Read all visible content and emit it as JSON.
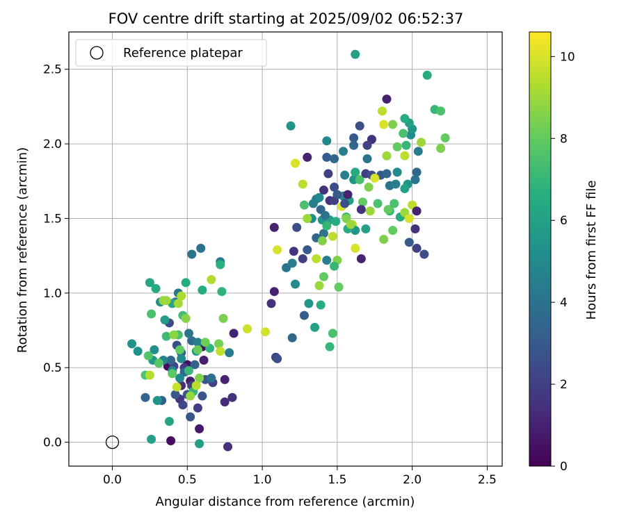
{
  "chart_data": {
    "type": "scatter",
    "title": "FOV centre drift starting at 2025/09/02 06:52:37",
    "xlabel": "Angular distance from reference (arcmin)",
    "ylabel": "Rotation from reference (arcmin)",
    "xlim": [
      -0.29,
      2.6
    ],
    "ylim": [
      -0.16,
      2.75
    ],
    "xticks": [
      0.0,
      0.5,
      1.0,
      1.5,
      2.0,
      2.5
    ],
    "xtick_labels": [
      "0.0",
      "0.5",
      "1.0",
      "1.5",
      "2.0",
      "2.5"
    ],
    "yticks": [
      0.0,
      0.5,
      1.0,
      1.5,
      2.0,
      2.5
    ],
    "ytick_labels": [
      "0.0",
      "0.5",
      "1.0",
      "1.5",
      "2.0",
      "2.5"
    ],
    "grid": true,
    "legend": {
      "placement": "top-left",
      "entries": [
        "Reference platepar"
      ]
    },
    "reference_point": {
      "x": 0.0,
      "y": 0.0
    },
    "colorbar": {
      "label": "Hours from first FF file",
      "colormap": "viridis",
      "range": [
        0,
        10.6
      ],
      "ticks": [
        0,
        2,
        4,
        6,
        8,
        10
      ],
      "tick_labels": [
        "0",
        "2",
        "4",
        "6",
        "8",
        "10"
      ]
    },
    "points": [
      [
        0.37,
        0.51,
        0.3
      ],
      [
        0.39,
        0.01,
        0.4
      ],
      [
        0.5,
        0.52,
        0.5
      ],
      [
        0.6,
        0.64,
        0.6
      ],
      [
        0.58,
        0.09,
        0.7
      ],
      [
        0.52,
        0.41,
        0.8
      ],
      [
        0.61,
        0.55,
        0.9
      ],
      [
        0.75,
        0.42,
        1.0
      ],
      [
        0.81,
        0.73,
        1.1
      ],
      [
        0.75,
        0.27,
        1.2
      ],
      [
        0.46,
        0.38,
        1.3
      ],
      [
        0.77,
        -0.03,
        1.4
      ],
      [
        0.8,
        0.3,
        1.5
      ],
      [
        0.45,
        0.29,
        1.6
      ],
      [
        0.48,
        0.5,
        1.8
      ],
      [
        0.57,
        0.23,
        1.9
      ],
      [
        0.53,
        0.38,
        2.0
      ],
      [
        0.67,
        0.4,
        2.1
      ],
      [
        0.41,
        0.51,
        2.2
      ],
      [
        0.47,
        0.25,
        2.3
      ],
      [
        0.38,
        0.8,
        2.4
      ],
      [
        0.43,
        0.65,
        2.5
      ],
      [
        0.5,
        0.32,
        2.6
      ],
      [
        0.6,
        0.31,
        2.7
      ],
      [
        0.62,
        0.42,
        2.8
      ],
      [
        0.52,
        0.17,
        2.9
      ],
      [
        0.42,
        0.32,
        3.0
      ],
      [
        0.46,
        0.6,
        3.1
      ],
      [
        0.33,
        0.28,
        3.2
      ],
      [
        0.55,
        0.52,
        3.3
      ],
      [
        0.22,
        0.3,
        3.4
      ],
      [
        0.39,
        0.55,
        3.5
      ],
      [
        0.48,
        0.47,
        3.6
      ],
      [
        0.53,
        0.68,
        3.7
      ],
      [
        0.66,
        0.43,
        3.8
      ],
      [
        0.59,
        1.3,
        3.9
      ],
      [
        0.53,
        1.26,
        4.0
      ],
      [
        0.51,
        0.73,
        4.1
      ],
      [
        0.44,
        1.0,
        4.2
      ],
      [
        0.42,
        0.94,
        4.3
      ],
      [
        0.78,
        0.6,
        4.4
      ],
      [
        0.72,
        1.21,
        4.5
      ],
      [
        0.57,
        0.67,
        4.6
      ],
      [
        0.4,
        0.48,
        4.7
      ],
      [
        0.34,
        0.55,
        4.8
      ],
      [
        0.46,
        0.56,
        4.9
      ],
      [
        0.45,
        0.43,
        5.0
      ],
      [
        0.32,
        0.94,
        5.1
      ],
      [
        0.28,
        0.62,
        5.2
      ],
      [
        0.17,
        0.61,
        5.3
      ],
      [
        0.13,
        0.66,
        5.4
      ],
      [
        0.3,
        0.28,
        5.5
      ],
      [
        0.27,
        0.55,
        5.6
      ],
      [
        0.56,
        0.61,
        5.7
      ],
      [
        0.35,
        0.82,
        5.8
      ],
      [
        0.58,
        -0.01,
        5.9
      ],
      [
        0.26,
        0.02,
        6.0
      ],
      [
        0.38,
        0.14,
        6.1
      ],
      [
        0.4,
        0.93,
        6.2
      ],
      [
        0.25,
        1.07,
        6.3
      ],
      [
        0.29,
        1.03,
        6.4
      ],
      [
        0.49,
        1.07,
        6.5
      ],
      [
        0.6,
        1.02,
        6.6
      ],
      [
        0.72,
        1.19,
        6.7
      ],
      [
        0.73,
        1.01,
        6.8
      ],
      [
        0.65,
        0.63,
        6.9
      ],
      [
        0.54,
        0.34,
        7.0
      ],
      [
        0.51,
        0.48,
        7.1
      ],
      [
        0.36,
        0.71,
        7.2
      ],
      [
        0.47,
        0.85,
        7.3
      ],
      [
        0.44,
        0.72,
        7.4
      ],
      [
        0.26,
        0.86,
        7.5
      ],
      [
        0.22,
        0.45,
        7.6
      ],
      [
        0.24,
        0.58,
        7.7
      ],
      [
        0.31,
        0.53,
        7.8
      ],
      [
        0.4,
        0.46,
        7.9
      ],
      [
        0.45,
        0.62,
        8.0
      ],
      [
        0.57,
        0.62,
        8.1
      ],
      [
        0.62,
        0.67,
        8.2
      ],
      [
        0.71,
        0.66,
        8.3
      ],
      [
        0.74,
        0.83,
        8.4
      ],
      [
        0.58,
        0.43,
        8.5
      ],
      [
        0.49,
        0.83,
        8.6
      ],
      [
        0.41,
        0.72,
        8.7
      ],
      [
        0.34,
        0.95,
        8.8
      ],
      [
        0.52,
        0.31,
        8.9
      ],
      [
        0.36,
        0.95,
        9.0
      ],
      [
        0.44,
        0.93,
        9.1
      ],
      [
        0.46,
        0.98,
        9.2
      ],
      [
        0.66,
        1.09,
        9.3
      ],
      [
        0.25,
        0.45,
        9.4
      ],
      [
        0.56,
        0.38,
        9.5
      ],
      [
        0.72,
        0.61,
        9.6
      ],
      [
        0.43,
        0.37,
        9.7
      ],
      [
        0.9,
        0.76,
        9.8
      ],
      [
        1.02,
        0.74,
        9.9
      ],
      [
        1.08,
        1.01,
        1.0
      ],
      [
        1.06,
        0.93,
        1.5
      ],
      [
        1.09,
        0.57,
        2.0
      ],
      [
        1.1,
        0.56,
        2.5
      ],
      [
        1.28,
        0.85,
        3.0
      ],
      [
        1.2,
        0.7,
        3.5
      ],
      [
        1.16,
        1.17,
        4.0
      ],
      [
        1.2,
        1.2,
        4.5
      ],
      [
        1.22,
        1.06,
        5.0
      ],
      [
        1.31,
        0.93,
        5.5
      ],
      [
        1.35,
        0.77,
        6.0
      ],
      [
        1.39,
        0.92,
        6.5
      ],
      [
        1.45,
        0.64,
        7.0
      ],
      [
        1.47,
        0.73,
        7.5
      ],
      [
        1.51,
        1.04,
        8.0
      ],
      [
        1.5,
        1.22,
        8.5
      ],
      [
        1.38,
        1.05,
        9.0
      ],
      [
        1.36,
        1.23,
        9.5
      ],
      [
        1.1,
        1.29,
        10.0
      ],
      [
        1.08,
        1.44,
        1.0
      ],
      [
        1.21,
        1.28,
        1.5
      ],
      [
        1.27,
        1.23,
        2.0
      ],
      [
        1.23,
        1.44,
        2.5
      ],
      [
        1.3,
        1.29,
        3.0
      ],
      [
        1.36,
        1.37,
        3.5
      ],
      [
        1.41,
        1.4,
        4.0
      ],
      [
        1.43,
        1.22,
        4.5
      ],
      [
        1.33,
        1.5,
        5.0
      ],
      [
        1.4,
        1.49,
        5.5
      ],
      [
        1.45,
        1.49,
        6.0
      ],
      [
        1.49,
        1.48,
        6.5
      ],
      [
        1.48,
        1.18,
        7.0
      ],
      [
        1.28,
        1.59,
        7.5
      ],
      [
        1.41,
        1.11,
        8.0
      ],
      [
        1.4,
        1.35,
        8.5
      ],
      [
        1.3,
        1.5,
        9.0
      ],
      [
        1.27,
        1.73,
        9.5
      ],
      [
        1.22,
        1.87,
        10.0
      ],
      [
        1.3,
        1.91,
        1.0
      ],
      [
        1.41,
        1.69,
        1.5
      ],
      [
        1.44,
        1.8,
        2.0
      ],
      [
        1.48,
        1.71,
        2.5
      ],
      [
        1.43,
        1.91,
        3.0
      ],
      [
        1.48,
        1.9,
        3.5
      ],
      [
        1.36,
        1.63,
        4.0
      ],
      [
        1.55,
        1.79,
        4.5
      ],
      [
        1.54,
        1.65,
        5.0
      ],
      [
        1.61,
        1.76,
        5.5
      ],
      [
        1.58,
        1.62,
        6.0
      ],
      [
        1.62,
        1.81,
        6.5
      ],
      [
        1.56,
        1.51,
        7.0
      ],
      [
        1.65,
        1.76,
        7.5
      ],
      [
        1.67,
        1.61,
        8.0
      ],
      [
        1.71,
        1.71,
        8.5
      ],
      [
        1.72,
        1.55,
        9.0
      ],
      [
        1.6,
        1.46,
        9.5
      ],
      [
        1.62,
        1.3,
        10.0
      ],
      [
        1.66,
        1.23,
        1.0
      ],
      [
        1.66,
        1.56,
        1.5
      ],
      [
        1.69,
        1.8,
        2.0
      ],
      [
        1.73,
        1.79,
        2.5
      ],
      [
        1.79,
        1.79,
        3.0
      ],
      [
        1.83,
        1.8,
        3.5
      ],
      [
        1.85,
        1.72,
        4.0
      ],
      [
        1.89,
        1.73,
        4.5
      ],
      [
        1.9,
        1.81,
        5.0
      ],
      [
        1.97,
        1.73,
        5.5
      ],
      [
        1.95,
        1.7,
        6.0
      ],
      [
        1.92,
        1.51,
        6.5
      ],
      [
        1.85,
        1.55,
        7.0
      ],
      [
        1.88,
        1.6,
        7.5
      ],
      [
        1.87,
        1.42,
        8.0
      ],
      [
        1.81,
        1.36,
        8.5
      ],
      [
        1.95,
        1.54,
        9.0
      ],
      [
        2.0,
        1.59,
        9.5
      ],
      [
        1.98,
        1.5,
        10.0
      ],
      [
        2.03,
        1.55,
        1.0
      ],
      [
        2.02,
        1.43,
        1.5
      ],
      [
        2.03,
        1.3,
        2.0
      ],
      [
        2.08,
        1.26,
        2.5
      ],
      [
        1.98,
        1.34,
        3.0
      ],
      [
        2.03,
        1.81,
        3.5
      ],
      [
        2.02,
        1.76,
        4.0
      ],
      [
        2.04,
        1.95,
        4.5
      ],
      [
        1.99,
        2.06,
        5.0
      ],
      [
        2.0,
        2.1,
        5.5
      ],
      [
        1.98,
        2.14,
        6.0
      ],
      [
        1.95,
        2.17,
        6.5
      ],
      [
        1.96,
        1.99,
        7.0
      ],
      [
        1.94,
        2.07,
        7.5
      ],
      [
        1.9,
        1.98,
        8.0
      ],
      [
        1.87,
        2.13,
        8.5
      ],
      [
        1.83,
        1.92,
        9.0
      ],
      [
        1.8,
        2.22,
        9.5
      ],
      [
        1.81,
        2.13,
        10.0
      ],
      [
        1.83,
        2.3,
        1.0
      ],
      [
        1.73,
        2.03,
        1.5
      ],
      [
        1.7,
        1.99,
        2.0
      ],
      [
        1.65,
        2.12,
        2.5
      ],
      [
        1.61,
        2.04,
        3.0
      ],
      [
        1.61,
        1.99,
        3.5
      ],
      [
        1.7,
        1.9,
        4.0
      ],
      [
        1.54,
        1.95,
        4.5
      ],
      [
        1.43,
        2.02,
        5.0
      ],
      [
        1.19,
        2.12,
        5.5
      ],
      [
        1.62,
        2.6,
        6.0
      ],
      [
        2.1,
        2.46,
        6.5
      ],
      [
        2.15,
        2.23,
        7.0
      ],
      [
        2.19,
        2.22,
        7.5
      ],
      [
        2.22,
        2.04,
        8.0
      ],
      [
        2.19,
        1.97,
        8.5
      ],
      [
        2.06,
        2.01,
        9.0
      ],
      [
        1.95,
        1.92,
        9.5
      ],
      [
        1.53,
        1.58,
        10.0
      ],
      [
        1.57,
        1.66,
        1.0
      ],
      [
        1.45,
        1.62,
        1.5
      ],
      [
        1.48,
        1.62,
        2.0
      ],
      [
        1.55,
        1.6,
        2.5
      ],
      [
        1.5,
        1.66,
        3.0
      ],
      [
        1.39,
        1.56,
        3.5
      ],
      [
        1.42,
        1.52,
        4.0
      ],
      [
        1.34,
        1.6,
        4.5
      ],
      [
        1.38,
        1.64,
        5.0
      ],
      [
        1.62,
        1.42,
        5.5
      ],
      [
        1.69,
        1.43,
        6.0
      ],
      [
        1.57,
        1.43,
        6.5
      ],
      [
        1.43,
        1.45,
        7.0
      ],
      [
        1.77,
        1.6,
        7.5
      ],
      [
        1.84,
        1.56,
        8.0
      ],
      [
        1.56,
        1.5,
        8.5
      ],
      [
        1.59,
        1.46,
        9.0
      ],
      [
        1.47,
        1.38,
        9.5
      ],
      [
        1.75,
        1.77,
        10.0
      ]
    ]
  }
}
